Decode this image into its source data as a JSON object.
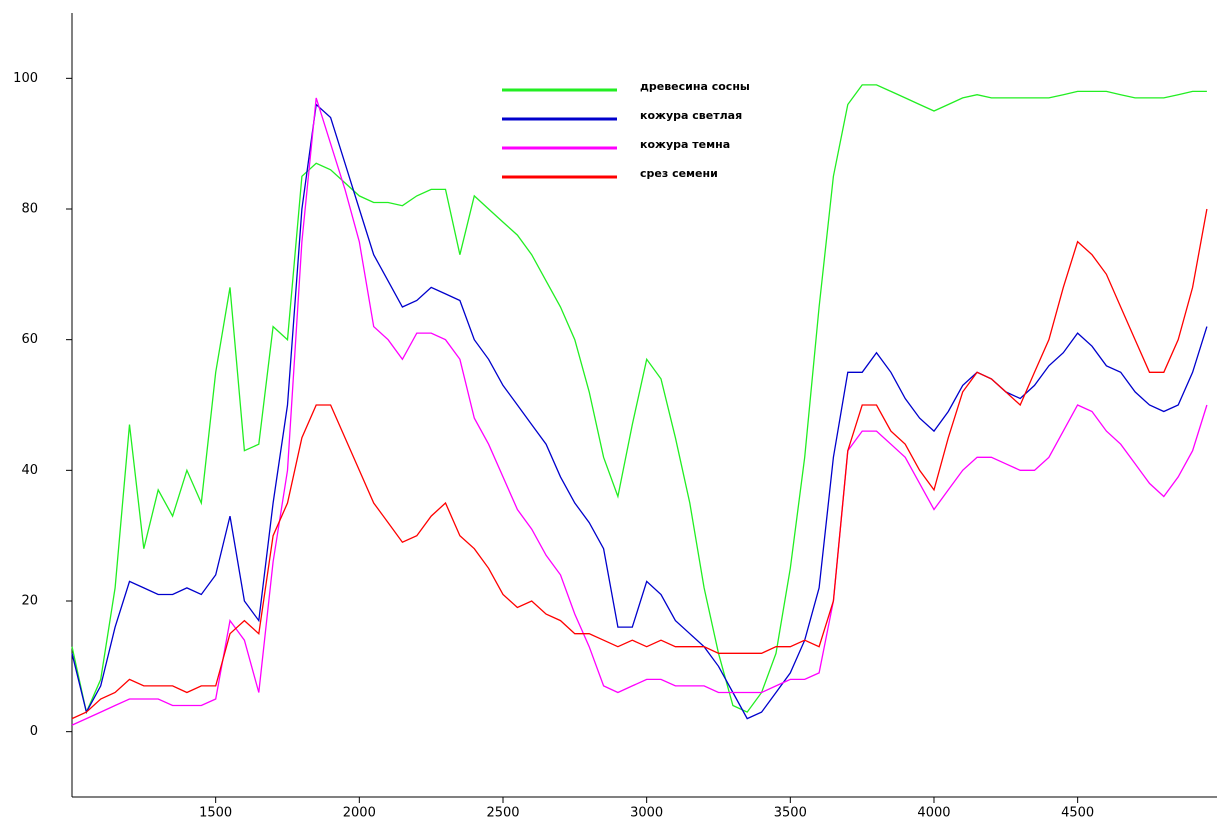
{
  "chart_data": {
    "type": "line",
    "legend": "upper center",
    "xlim": [
      1000,
      4985
    ],
    "ylim": [
      -10,
      110
    ],
    "xticks": [
      1500,
      2000,
      2500,
      3000,
      3500,
      4000,
      4500
    ],
    "yticks": [
      0,
      20,
      40,
      60,
      80,
      100
    ],
    "x": [
      1000,
      1050,
      1100,
      1150,
      1200,
      1250,
      1300,
      1350,
      1400,
      1450,
      1500,
      1550,
      1600,
      1650,
      1700,
      1750,
      1800,
      1850,
      1900,
      1950,
      2000,
      2050,
      2100,
      2150,
      2200,
      2250,
      2300,
      2350,
      2400,
      2450,
      2500,
      2550,
      2600,
      2650,
      2700,
      2750,
      2800,
      2850,
      2900,
      2950,
      3000,
      3050,
      3100,
      3150,
      3200,
      3250,
      3300,
      3350,
      3400,
      3450,
      3500,
      3550,
      3600,
      3650,
      3700,
      3750,
      3800,
      3850,
      3900,
      3950,
      4000,
      4050,
      4100,
      4150,
      4200,
      4250,
      4300,
      4350,
      4400,
      4450,
      4500,
      4550,
      4600,
      4650,
      4700,
      4750,
      4800,
      4850,
      4900,
      4950
    ],
    "series": [
      {
        "name": "древесина сосны",
        "color": "#22ee22",
        "values": [
          13,
          3,
          8,
          22,
          47,
          28,
          37,
          33,
          40,
          35,
          55,
          68,
          43,
          44,
          62,
          60,
          85,
          87,
          86,
          84,
          82,
          81,
          81,
          80.5,
          82,
          83,
          83,
          73,
          82,
          80,
          78,
          76,
          73,
          69,
          65,
          60,
          52,
          42,
          36,
          47,
          57,
          54,
          45,
          35,
          22,
          12,
          4,
          3,
          6,
          12,
          25,
          42,
          65,
          85,
          96,
          99,
          99,
          98,
          97,
          96,
          95,
          96,
          97,
          97.5,
          97,
          97,
          97,
          97,
          97,
          97.5,
          98,
          98,
          98,
          97.5,
          97,
          97,
          97,
          97.5,
          98,
          98
        ]
      },
      {
        "name": "кожура светлая",
        "color": "#0000cc",
        "values": [
          12,
          3,
          7,
          16,
          23,
          22,
          21,
          21,
          22,
          21,
          24,
          33,
          20,
          17,
          35,
          50,
          80,
          96,
          94,
          87,
          80,
          73,
          69,
          65,
          66,
          68,
          67,
          66,
          60,
          57,
          53,
          50,
          47,
          44,
          39,
          35,
          32,
          28,
          16,
          16,
          23,
          21,
          17,
          15,
          13,
          10,
          6,
          2,
          3,
          6,
          9,
          14,
          22,
          42,
          55,
          55,
          58,
          55,
          51,
          48,
          46,
          49,
          53,
          55,
          54,
          52,
          51,
          53,
          56,
          58,
          61,
          59,
          56,
          55,
          52,
          50,
          49,
          50,
          55,
          62
        ]
      },
      {
        "name": "кожура темна",
        "color": "#ff00ff",
        "values": [
          1,
          2,
          3,
          4,
          5,
          5,
          5,
          4,
          4,
          4,
          5,
          17,
          14,
          6,
          26,
          40,
          75,
          97,
          90,
          83,
          75,
          62,
          60,
          57,
          61,
          61,
          60,
          57,
          48,
          44,
          39,
          34,
          31,
          27,
          24,
          18,
          13,
          7,
          6,
          7,
          8,
          8,
          7,
          7,
          7,
          6,
          6,
          6,
          6,
          7,
          8,
          8,
          9,
          20,
          43,
          46,
          46,
          44,
          42,
          38,
          34,
          37,
          40,
          42,
          42,
          41,
          40,
          40,
          42,
          46,
          50,
          49,
          46,
          44,
          41,
          38,
          36,
          39,
          43,
          50
        ]
      },
      {
        "name": "срез семени",
        "color": "#ff0000",
        "values": [
          2,
          3,
          5,
          6,
          8,
          7,
          7,
          7,
          6,
          7,
          7,
          15,
          17,
          15,
          30,
          35,
          45,
          50,
          50,
          45,
          40,
          35,
          32,
          29,
          30,
          33,
          35,
          30,
          28,
          25,
          21,
          19,
          20,
          18,
          17,
          15,
          15,
          14,
          13,
          14,
          13,
          14,
          13,
          13,
          13,
          12,
          12,
          12,
          12,
          13,
          13,
          14,
          13,
          20,
          43,
          50,
          50,
          46,
          44,
          40,
          37,
          45,
          52,
          55,
          54,
          52,
          50,
          55,
          60,
          68,
          75,
          73,
          70,
          65,
          60,
          55,
          55,
          60,
          68,
          80
        ]
      }
    ]
  }
}
